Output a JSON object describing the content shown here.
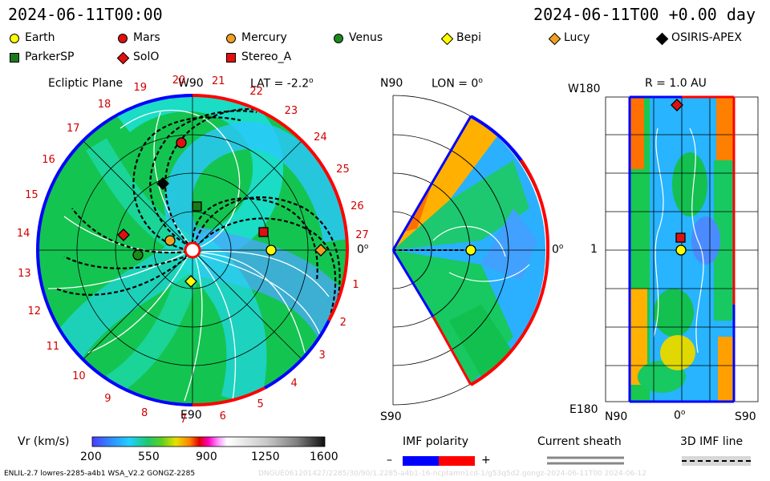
{
  "header": {
    "timestamp_left": "2024-06-11T00:00",
    "timestamp_right": "2024-06-11T00 +0.00 day"
  },
  "legend": [
    {
      "name": "Earth",
      "shape": "circle",
      "color": "#ffff00"
    },
    {
      "name": "Mars",
      "shape": "circle",
      "color": "#e01010"
    },
    {
      "name": "Mercury",
      "shape": "circle",
      "color": "#f0a020"
    },
    {
      "name": "Venus",
      "shape": "circle",
      "color": "#1a8a1a"
    },
    {
      "name": "Bepi",
      "shape": "diamond",
      "color": "#ffff00"
    },
    {
      "name": "Lucy",
      "shape": "diamond",
      "color": "#f0a020"
    },
    {
      "name": "OSIRIS-APEX",
      "shape": "diamond",
      "color": "#000000"
    },
    {
      "name": "ParkerSP",
      "shape": "square",
      "color": "#1a7a1a"
    },
    {
      "name": "SolO",
      "shape": "diamond",
      "color": "#e01010"
    },
    {
      "name": "Stereo_A",
      "shape": "square",
      "color": "#e01010"
    }
  ],
  "ecliptic": {
    "title": "Ecliptic Plane",
    "top_label": "W90",
    "bottom_label": "E90",
    "right_label": "0",
    "right_label_sup": "o",
    "lat_label": "LAT = -2.2",
    "lat_sup": "o",
    "carrington_ticks": [
      "1",
      "2",
      "3",
      "4",
      "5",
      "6",
      "7",
      "8",
      "9",
      "10",
      "11",
      "12",
      "13",
      "14",
      "15",
      "16",
      "17",
      "18",
      "19",
      "20",
      "21",
      "22",
      "23",
      "24",
      "25",
      "26",
      "27"
    ]
  },
  "meridional": {
    "top_label": "N90",
    "bottom_label": "S90",
    "lon_label": "LON = 0",
    "lon_sup": "o",
    "right_label": "0",
    "right_label_sup": "o"
  },
  "sphere": {
    "title": "R = 1.0 AU",
    "top_left": "W180",
    "bottom_left": "E180",
    "mid_left": "1",
    "x_left": "N90",
    "x_mid": "0",
    "x_mid_sup": "o",
    "x_right": "S90"
  },
  "colorbar": {
    "label": "Vr (km/s)",
    "ticks": [
      "200",
      "550",
      "900",
      "1250",
      "1600"
    ],
    "range": [
      200,
      1600
    ]
  },
  "imf": {
    "polarity_title": "IMF polarity",
    "minus": "–",
    "plus": "+",
    "neg_color": "#0000ff",
    "pos_color": "#ff0000",
    "sheath_title": "Current sheath",
    "line_title": "3D IMF line"
  },
  "footer": {
    "left_text": "ENLIL-2.7 lowres-2285-a4b1 WSA_V2.2 GONGZ-2285",
    "right_text": "DNGUE061201427/2285/30/90/1.2285-a4b1-16-ncptamn1cd-1/g53q5d2.gongz-2024-06-11T00   2024-06-12"
  }
}
